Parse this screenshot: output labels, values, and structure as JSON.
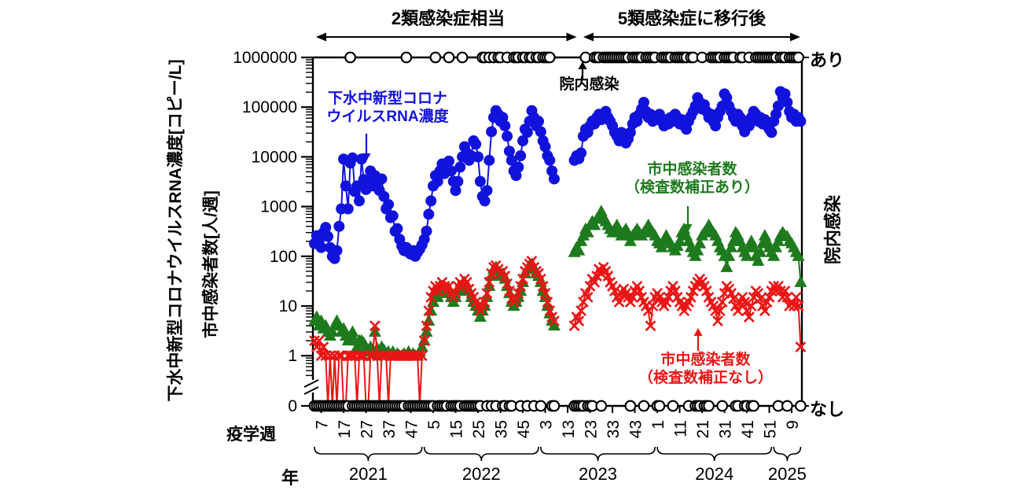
{
  "chart_data": {
    "type": "line-scatter-log",
    "x_axis": {
      "title": "疫学週",
      "year_title": "年",
      "week_index_zero": "2021-W04",
      "total_weeks": 218,
      "ticks": [
        {
          "week_index": 3,
          "label": "7"
        },
        {
          "week_index": 13,
          "label": "17"
        },
        {
          "week_index": 23,
          "label": "27"
        },
        {
          "week_index": 33,
          "label": "37"
        },
        {
          "week_index": 43,
          "label": "47"
        },
        {
          "week_index": 53,
          "label": "5"
        },
        {
          "week_index": 63,
          "label": "15"
        },
        {
          "week_index": 73,
          "label": "25"
        },
        {
          "week_index": 83,
          "label": "35"
        },
        {
          "week_index": 93,
          "label": "45"
        },
        {
          "week_index": 103,
          "label": "3"
        },
        {
          "week_index": 113,
          "label": "13"
        },
        {
          "week_index": 123,
          "label": "23"
        },
        {
          "week_index": 133,
          "label": "33"
        },
        {
          "week_index": 143,
          "label": "43"
        },
        {
          "week_index": 153,
          "label": "1"
        },
        {
          "week_index": 163,
          "label": "11"
        },
        {
          "week_index": 173,
          "label": "21"
        },
        {
          "week_index": 183,
          "label": "31"
        },
        {
          "week_index": 193,
          "label": "41"
        },
        {
          "week_index": 203,
          "label": "51"
        },
        {
          "week_index": 213,
          "label": "9"
        }
      ],
      "years": [
        {
          "label": "2021",
          "start_week_index": 0,
          "end_week_index": 48
        },
        {
          "label": "2022",
          "start_week_index": 49,
          "end_week_index": 100
        },
        {
          "label": "2023",
          "start_week_index": 101,
          "end_week_index": 152
        },
        {
          "label": "2024",
          "start_week_index": 153,
          "end_week_index": 204
        },
        {
          "label": "2025",
          "start_week_index": 205,
          "end_week_index": 217
        }
      ]
    },
    "y_axis": {
      "title_outer": "下水中新型コロナウイルスRNA濃度[コピー/L]",
      "title_inner": "市中感染者数[人/週]",
      "scale": "log",
      "axis_break_between": [
        1,
        0
      ],
      "ticks": [
        {
          "value": 1000000,
          "label": "1000000"
        },
        {
          "value": 100000,
          "label": "100000"
        },
        {
          "value": 10000,
          "label": "10000"
        },
        {
          "value": 1000,
          "label": "1000"
        },
        {
          "value": 100,
          "label": "100"
        },
        {
          "value": 10,
          "label": "10"
        },
        {
          "value": 1,
          "label": "1"
        },
        {
          "value": 0,
          "label": "0"
        }
      ]
    },
    "right_axis": {
      "title": "院内感染",
      "top_label": "あり",
      "bottom_label": "なし"
    },
    "regimes": [
      {
        "label": "2類感染症相当",
        "start_week_index": -1,
        "end_week_index": 117
      },
      {
        "label": "5類感染症に移行後",
        "start_week_index": 120,
        "end_week_index": 217
      }
    ],
    "annotations": {
      "wastewater": {
        "lines": [
          "下水中新型コロナ",
          "ウイルスRNA濃度"
        ],
        "color": "#1212dd"
      },
      "corrected": {
        "lines": [
          "市中感染者数",
          "（検査数補正あり）"
        ],
        "color": "#1d7a1d"
      },
      "uncorrected": {
        "lines": [
          "市中感染者数",
          "（検査数補正なし）"
        ],
        "color": "#ea1515"
      },
      "hospital": {
        "label": "院内感染"
      }
    },
    "series": [
      {
        "name": "下水中新型コロナウイルスRNA濃度",
        "marker": "circle",
        "color": "#1212dd",
        "segments": [
          {
            "start_week_index": 0,
            "values": [
              180,
              260,
              200,
              150,
              300,
              380,
              250,
              150,
              100,
              90,
              130,
              400,
              900,
              9000,
              2600,
              900,
              7500,
              9500,
              2000,
              2600,
              1300,
              9000,
              3500,
              2200,
              3200,
              5200,
              2600,
              4200,
              3200,
              2100,
              3600,
              1600,
              900,
              1100,
              600,
              650,
              320,
              360,
              220,
              160,
              130,
              150,
              120,
              110,
              130,
              100,
              120,
              140,
              170,
              220,
              320,
              700,
              1300,
              2600,
              4200,
              3200,
              5200,
              7200,
              4600,
              6200,
              8200,
              5200,
              3200,
              2100,
              3200,
              6200,
              10000,
              16000,
              12000,
              8500,
              10500,
              21000,
              18000,
              10000,
              3200,
              1600,
              1300,
              2100,
              8500,
              32000,
              62000,
              85000,
              72000,
              52000,
              62000,
              42000,
              26000,
              13000,
              8500,
              5200,
              4200,
              6200,
              10500,
              21000,
              36000,
              31000,
              52000,
              85000,
              62000,
              42000,
              52000,
              32000,
              21000,
              16000,
              10500,
              8500,
              5200,
              3600
            ]
          },
          {
            "start_week_index": 116,
            "values": [
              8500,
              10500,
              9200,
              12000,
              26000,
              36000,
              31000,
              42000,
              52000,
              46000,
              62000,
              72000,
              56000,
              66000,
              82000,
              62000,
              52000,
              42000,
              31000,
              26000,
              21000,
              31000,
              26000,
              19000,
              23000,
              31000,
              46000,
              62000,
              52000,
              72000,
              92000,
              125000,
              82000,
              62000,
              72000,
              52000,
              56000,
              62000,
              72000,
              52000,
              42000,
              56000,
              46000,
              62000,
              52000,
              72000,
              62000,
              46000,
              56000,
              42000,
              36000,
              52000,
              66000,
              82000,
              105000,
              155000,
              125000,
              92000,
              112000,
              82000,
              62000,
              72000,
              52000,
              42000,
              62000,
              82000,
              105000,
              185000,
              155000,
              105000,
              82000,
              62000,
              52000,
              72000,
              62000,
              42000,
              32000,
              52000,
              42000,
              62000,
              82000,
              72000,
              52000,
              62000,
              46000,
              56000,
              42000,
              36000,
              31000,
              52000,
              72000,
              105000,
              205000,
              155000,
              185000,
              125000,
              82000,
              62000,
              72000,
              52000,
              62000,
              52000
            ]
          }
        ]
      },
      {
        "name": "市中感染者数（検査数補正あり）",
        "marker": "triangle",
        "color": "#1d7a1d",
        "segments": [
          {
            "start_week_index": 0,
            "values": [
              5,
              6,
              4,
              5,
              3.5,
              4,
              3,
              2.5,
              3,
              4,
              5,
              4,
              3,
              3.5,
              2.5,
              2,
              2.5,
              3,
              2,
              1.5,
              2,
              2,
              1.8,
              1.5,
              1.2,
              1.5,
              1.3,
              3,
              1.4,
              1.2,
              1.5,
              1.3,
              1.1,
              1.2,
              1,
              1.2,
              1,
              1.1,
              1,
              1,
              1.1,
              1,
              1.2,
              1,
              1.1,
              1,
              1,
              1.2,
              1.5,
              2,
              3,
              5,
              8,
              12,
              18,
              15,
              20,
              25,
              20,
              18,
              22,
              15,
              12,
              15,
              20,
              25,
              20,
              30,
              25,
              20,
              15,
              12,
              10,
              8,
              6,
              8,
              10,
              15,
              25,
              40,
              55,
              60,
              50,
              40,
              45,
              35,
              25,
              18,
              12,
              10,
              12,
              15,
              20,
              30,
              45,
              55,
              65,
              70,
              55,
              45,
              40,
              30,
              20,
              15,
              10,
              7,
              5,
              4
            ]
          },
          {
            "start_week_index": 116,
            "values": [
              120,
              150,
              130,
              200,
              260,
              350,
              300,
              420,
              500,
              420,
              560,
              620,
              800,
              620,
              500,
              420,
              350,
              300,
              350,
              420,
              300,
              260,
              300,
              350,
              260,
              200,
              260,
              300,
              350,
              300,
              260,
              300,
              350,
              420,
              350,
              300,
              260,
              200,
              180,
              150,
              200,
              260,
              200,
              180,
              150,
              130,
              160,
              200,
              300,
              350,
              260,
              200,
              150,
              120,
              100,
              130,
              180,
              260,
              300,
              350,
              420,
              350,
              300,
              260,
              200,
              150,
              130,
              100,
              60,
              100,
              150,
              200,
              300,
              260,
              200,
              150,
              120,
              100,
              150,
              200,
              150,
              100,
              80,
              120,
              180,
              260,
              200,
              150,
              120,
              100,
              150,
              200,
              260,
              300,
              260,
              250,
              200,
              180,
              150,
              120,
              100,
              30
            ]
          }
        ]
      },
      {
        "name": "市中感染者数（検査数補正なし）",
        "marker": "x",
        "color": "#ea1515",
        "segments": [
          {
            "start_week_index": 0,
            "values": [
              2,
              1.5,
              2,
              1,
              1.5,
              1,
              0,
              1,
              0,
              1,
              0,
              1,
              1,
              0,
              0,
              1,
              1,
              1,
              1,
              0,
              1,
              1,
              1,
              0,
              0,
              1,
              1,
              4,
              1,
              0,
              1,
              1,
              1,
              0,
              1,
              1,
              1,
              1,
              1,
              1,
              1,
              1,
              1,
              1,
              1,
              1,
              1,
              0,
              1,
              2,
              4,
              8,
              15,
              20,
              25,
              20,
              25,
              30,
              25,
              20,
              25,
              18,
              15,
              18,
              25,
              30,
              25,
              35,
              30,
              22,
              18,
              15,
              12,
              10,
              8,
              10,
              12,
              18,
              30,
              45,
              60,
              65,
              55,
              45,
              50,
              40,
              28,
              20,
              14,
              12,
              14,
              18,
              25,
              35,
              50,
              60,
              70,
              80,
              60,
              50,
              45,
              35,
              25,
              18,
              12,
              8,
              6,
              5
            ]
          },
          {
            "start_week_index": 116,
            "values": [
              4,
              6,
              5,
              8,
              12,
              18,
              15,
              25,
              35,
              30,
              40,
              55,
              45,
              60,
              50,
              40,
              30,
              25,
              20,
              15,
              12,
              18,
              22,
              18,
              15,
              12,
              15,
              20,
              25,
              20,
              15,
              12,
              10,
              8,
              4,
              10,
              15,
              18,
              15,
              12,
              10,
              12,
              15,
              20,
              25,
              20,
              15,
              12,
              10,
              8,
              10,
              12,
              15,
              20,
              25,
              30,
              35,
              30,
              25,
              20,
              15,
              12,
              10,
              8,
              5,
              8,
              12,
              18,
              25,
              22,
              18,
              14,
              10,
              8,
              12,
              15,
              12,
              8,
              6,
              10,
              15,
              20,
              18,
              14,
              10,
              8,
              12,
              15,
              20,
              25,
              20,
              25,
              20,
              15,
              20,
              15,
              10,
              12,
              10,
              15,
              10,
              1.5
            ]
          }
        ]
      }
    ],
    "hospital_infection_events": {
      "name": "院内感染",
      "present_weeks": [
        16,
        41,
        54,
        60,
        66,
        75,
        76,
        78,
        80,
        82,
        83,
        86,
        89,
        90,
        91,
        93,
        94,
        96,
        97,
        99,
        100,
        102,
        103,
        104,
        105,
        121,
        125,
        126,
        127,
        129,
        130,
        131,
        132,
        133,
        134,
        135,
        136,
        137,
        138,
        139,
        140,
        142,
        143,
        144,
        145,
        146,
        148,
        149,
        150,
        151,
        152,
        155,
        156,
        157,
        158,
        159,
        161,
        162,
        163,
        164,
        165,
        166,
        168,
        169,
        173,
        177,
        178,
        179,
        180,
        181,
        183,
        184,
        185,
        186,
        187,
        190,
        191,
        194,
        197,
        198,
        199,
        200,
        201,
        202,
        203,
        204,
        205,
        206,
        208,
        209,
        210,
        212,
        213,
        214,
        215,
        216
      ],
      "no_data_weeks": [
        108,
        109,
        110,
        111,
        112,
        113,
        114,
        115
      ]
    }
  }
}
